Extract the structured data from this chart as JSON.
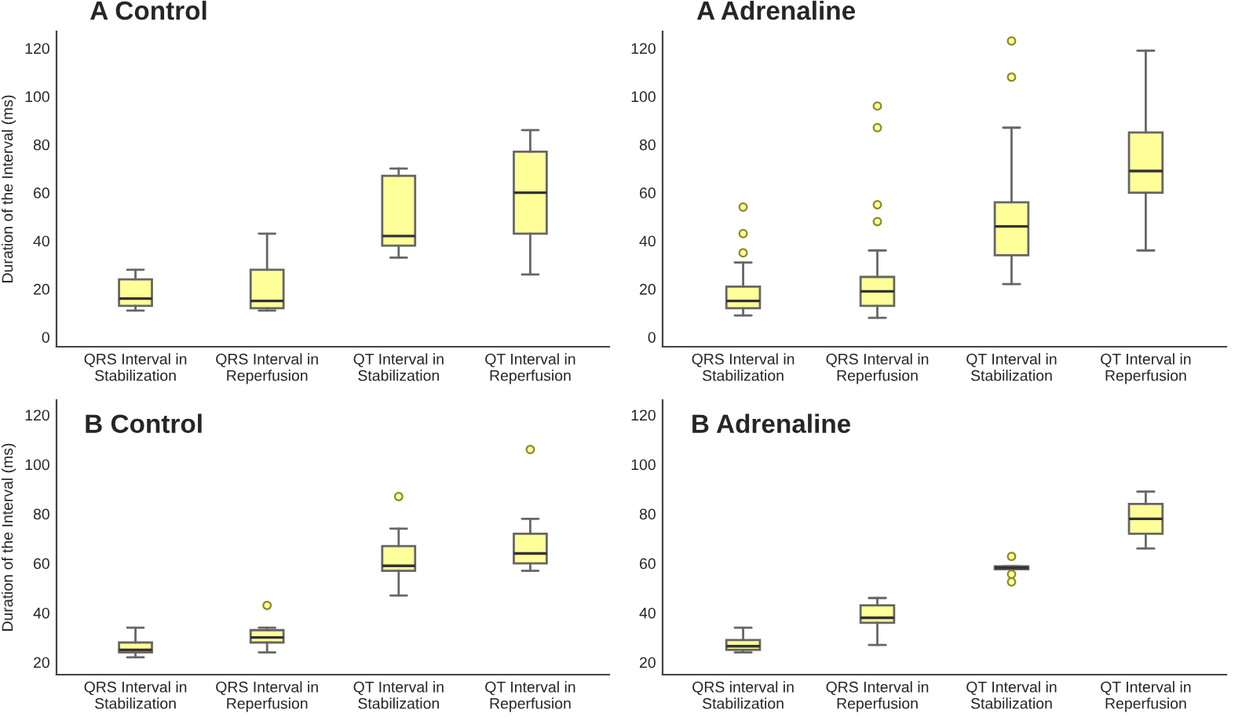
{
  "chart_data": [
    {
      "type": "box",
      "title": "A Control",
      "ylabel": "Duration of the Interval (ms)",
      "categories": [
        "QRS Interval in\nStabilization",
        "QRS Interval in\nReperfusion",
        "QT Interval in\nStabilization",
        "QT Interval in\nReperfusion"
      ],
      "ylim": [
        -4,
        127
      ],
      "yticks": [
        0,
        20,
        40,
        60,
        80,
        100,
        120
      ],
      "color": "#ffff99",
      "boxes": [
        {
          "low": 11,
          "q1": 13,
          "median": 16,
          "q3": 24,
          "high": 28
        },
        {
          "low": 11,
          "q1": 12,
          "median": 15,
          "q3": 28,
          "high": 43
        },
        {
          "low": 33,
          "q1": 38,
          "median": 42,
          "q3": 67,
          "high": 70
        },
        {
          "low": 26,
          "q1": 43,
          "median": 60,
          "q3": 77,
          "high": 86
        }
      ]
    },
    {
      "type": "box",
      "title": "A Adrenaline",
      "categories": [
        "QRS Interval in\nStabilization",
        "QRS Interval in\nReperfusion",
        "QT Interval in\nStabilization",
        "QT Interval in\nReperfusion"
      ],
      "ylim": [
        -4,
        127
      ],
      "yticks": [
        0,
        20,
        40,
        60,
        80,
        100,
        120
      ],
      "color": "#ffff99",
      "boxes": [
        {
          "low": 9,
          "q1": 12,
          "median": 15,
          "q3": 21,
          "high": 31,
          "outliers": [
            35,
            43,
            54
          ]
        },
        {
          "low": 8,
          "q1": 13,
          "median": 19,
          "q3": 25,
          "high": 36,
          "outliers": [
            48,
            55,
            87,
            96
          ]
        },
        {
          "low": 22,
          "q1": 34,
          "median": 46,
          "q3": 56,
          "high": 87,
          "outliers": [
            108,
            123
          ]
        },
        {
          "low": 36,
          "q1": 60,
          "median": 69,
          "q3": 85,
          "high": 119
        }
      ]
    },
    {
      "type": "box",
      "title": "B Control",
      "ylabel": "Duration of the Interval (ms)",
      "categories": [
        "QRS Interval in\nStabilization",
        "QRS Interval in\nReperfusion",
        "QT Interval in\nStabilization",
        "QT Interval in\nReperfusion"
      ],
      "ylim": [
        15,
        126
      ],
      "yticks": [
        20,
        40,
        60,
        80,
        100,
        120
      ],
      "color": "#ffff99",
      "boxes": [
        {
          "low": 22,
          "q1": 24,
          "median": 25,
          "q3": 28,
          "high": 34
        },
        {
          "low": 24,
          "q1": 28,
          "median": 30,
          "q3": 33,
          "high": 34,
          "outliers": [
            43
          ]
        },
        {
          "low": 47,
          "q1": 57,
          "median": 59,
          "q3": 67,
          "high": 74,
          "outliers": [
            87
          ]
        },
        {
          "low": 57,
          "q1": 60,
          "median": 64,
          "q3": 72,
          "high": 78,
          "outliers": [
            106
          ]
        }
      ]
    },
    {
      "type": "box",
      "title": "B Adrenaline",
      "categories": [
        "QRS interval in\nStabilization",
        "QRS Interval in\nReperfusion",
        "QT Interval in\nStabilization",
        "QT Interval in\nReperfusion"
      ],
      "ylim": [
        15,
        126
      ],
      "yticks": [
        20,
        40,
        60,
        80,
        100,
        120
      ],
      "color": "#ffff99",
      "boxes": [
        {
          "low": 24,
          "q1": 25,
          "median": 26.5,
          "q3": 29,
          "high": 34
        },
        {
          "low": 27,
          "q1": 36,
          "median": 38,
          "q3": 43,
          "high": 46
        },
        {
          "low": 57.6,
          "q1": 57.6,
          "median": 58.2,
          "q3": 58.8,
          "high": 58.8,
          "outliers": [
            52.5,
            55.6,
            62.8
          ]
        },
        {
          "low": 66,
          "q1": 72,
          "median": 78,
          "q3": 84,
          "high": 89
        }
      ]
    }
  ]
}
